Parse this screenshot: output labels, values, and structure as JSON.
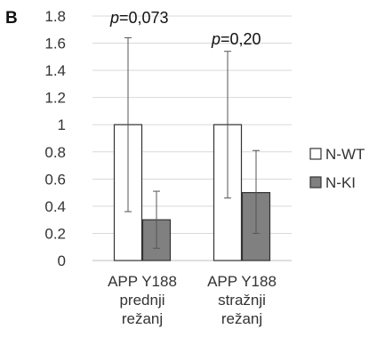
{
  "panel_label": "B",
  "colors": {
    "series_wt": "#ffffff",
    "series_ki": "#808080",
    "bar_stroke": "#333333",
    "error_bar": "#555555",
    "gridline": "#d9d9d9",
    "axis": "#bfbfbf"
  },
  "legend_placement": "right",
  "chart_data": {
    "type": "bar",
    "categories": [
      [
        "APP Y188",
        "prednji",
        "režanj"
      ],
      [
        "APP Y188",
        "stražnji",
        "režanj"
      ]
    ],
    "series": [
      {
        "name": "N-WT",
        "values": [
          1.0,
          1.0
        ],
        "error_low": [
          0.36,
          0.46
        ],
        "error_high": [
          1.64,
          1.54
        ]
      },
      {
        "name": "N-KI",
        "values": [
          0.3,
          0.5
        ],
        "error_low": [
          0.09,
          0.2
        ],
        "error_high": [
          0.51,
          0.81
        ]
      }
    ],
    "annotations": [
      {
        "category_index": 0,
        "prefix": "p",
        "text": "=0,073"
      },
      {
        "category_index": 1,
        "prefix": "p",
        "text": "=0,20"
      }
    ],
    "ylim": [
      0,
      1.8
    ],
    "yticks": [
      "0",
      "0.2",
      "0.4",
      "0.6",
      "0.8",
      "1",
      "1.2",
      "1.4",
      "1.6",
      "1.8"
    ],
    "grid": true,
    "title": "",
    "xlabel": "",
    "ylabel": ""
  }
}
